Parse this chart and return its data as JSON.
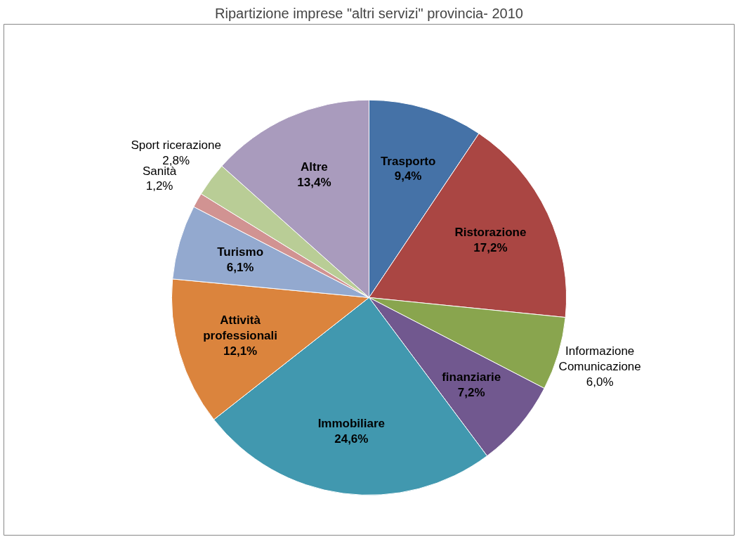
{
  "chart_data": {
    "type": "pie",
    "title": "Ripartizione imprese \"altri servizi\" provincia- 2010",
    "categories": [
      "Trasporto",
      "Ristorazione",
      "Informazione\nComunicazione",
      "finanziarie",
      "Immobiliare",
      "Attività\nprofessionali",
      "Turismo",
      "Sanità",
      "Sport ricerazione",
      "Altre"
    ],
    "values": [
      9.4,
      17.2,
      6.0,
      7.2,
      24.6,
      12.1,
      6.1,
      1.2,
      2.8,
      13.4
    ],
    "value_labels": [
      "9,4%",
      "17,2%",
      "6,0%",
      "7,2%",
      "24,6%",
      "12,1%",
      "6,1%",
      "1,2%",
      "2,8%",
      "13,4%"
    ],
    "colors": [
      "#4572a7",
      "#aa4643",
      "#89a54e",
      "#71588f",
      "#4198af",
      "#db843d",
      "#93a9cf",
      "#d19392",
      "#b9cd96",
      "#a99bbd"
    ]
  }
}
